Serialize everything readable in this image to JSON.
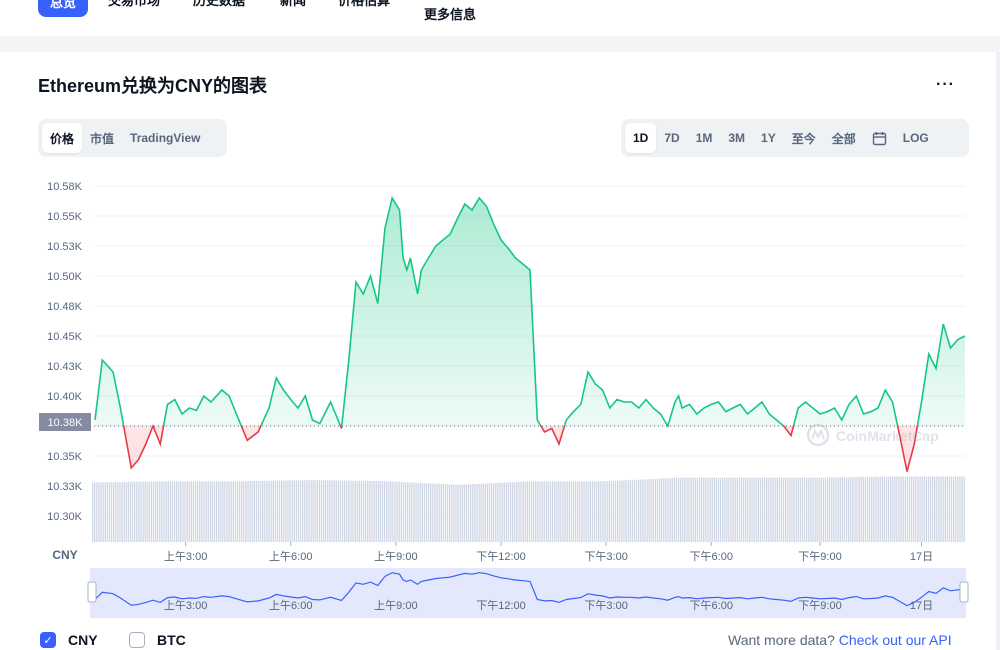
{
  "nav": {
    "tabs": [
      {
        "label": "总览",
        "active": true
      },
      {
        "label": "交易市场"
      },
      {
        "label": "历史数据"
      },
      {
        "label": "新闻"
      },
      {
        "label": "价格估算"
      },
      {
        "label": "更多信息"
      }
    ]
  },
  "chart_title": "Ethereum兑换为CNY的图表",
  "more_label": "···",
  "view_tabs": [
    {
      "label": "价格",
      "active": true
    },
    {
      "label": "市值"
    },
    {
      "label": "TradingView"
    }
  ],
  "range_tabs": [
    {
      "label": "1D",
      "active": true
    },
    {
      "label": "7D"
    },
    {
      "label": "1M"
    },
    {
      "label": "3M"
    },
    {
      "label": "1Y"
    },
    {
      "label": "至今"
    },
    {
      "label": "全部"
    },
    {
      "label": "",
      "icon": "calendar-icon"
    },
    {
      "label": "LOG"
    }
  ],
  "watermark": "CoinMarketCap",
  "legend": [
    {
      "label": "CNY",
      "checked": true
    },
    {
      "label": "BTC",
      "checked": false
    }
  ],
  "api_text": "Want more data?",
  "api_link": "Check out our API",
  "colors": {
    "up": "#16c784",
    "down": "#ea3943",
    "accent": "#3861fb"
  },
  "chart_data": {
    "type": "line",
    "y_unit_label": "CNY",
    "y_ticks": [
      "10.58K",
      "10.55K",
      "10.53K",
      "10.50K",
      "10.48K",
      "10.45K",
      "10.43K",
      "10.40K",
      "10.38K",
      "10.35K",
      "10.33K",
      "10.30K"
    ],
    "x_ticks": [
      "上午3:00",
      "上午6:00",
      "上午9:00",
      "下午12:00",
      "下午3:00",
      "下午6:00",
      "下午9:00",
      "17日"
    ],
    "ylim": [
      10300,
      10585
    ],
    "baseline": 10380,
    "baseline_label": "10.38K",
    "price_hours": [
      0.0,
      0.2,
      0.5,
      0.7,
      1.0,
      1.2,
      1.4,
      1.6,
      1.8,
      2.0,
      2.2,
      2.4,
      2.6,
      2.8,
      3.0,
      3.2,
      3.5,
      3.7,
      3.9,
      4.2,
      4.5,
      4.8,
      5.0,
      5.2,
      5.4,
      5.6,
      5.8,
      6.0,
      6.2,
      6.5,
      6.8,
      7.0,
      7.2,
      7.4,
      7.6,
      7.8,
      8.0,
      8.2,
      8.4,
      8.5,
      8.6,
      8.7,
      8.8,
      8.9,
      9.0,
      9.2,
      9.4,
      9.6,
      9.8,
      10.0,
      10.2,
      10.4,
      10.6,
      10.8,
      11.0,
      11.2,
      11.4,
      11.6,
      11.8,
      12.0,
      12.2,
      12.4,
      12.6,
      12.8,
      13.0,
      13.2,
      13.4,
      13.6,
      13.8,
      14.0,
      14.2,
      14.4,
      14.6,
      14.8,
      15.0,
      15.2,
      15.4,
      15.6,
      15.8,
      16.0,
      16.1,
      16.2,
      16.4,
      16.6,
      16.8,
      17.0,
      17.2,
      17.4,
      17.6,
      17.8,
      18.0,
      18.2,
      18.4,
      18.6,
      18.8,
      19.0,
      19.2,
      19.4,
      19.6,
      19.8,
      20.0,
      20.2,
      20.4,
      20.6,
      20.8,
      21.0,
      21.2,
      21.4,
      21.6,
      21.8,
      22.0,
      22.2,
      22.4,
      22.6,
      22.8,
      23.0,
      23.2,
      23.4,
      23.6,
      23.8,
      24.0
    ],
    "prices": [
      10385,
      10435,
      10425,
      10395,
      10345,
      10352,
      10365,
      10380,
      10365,
      10398,
      10402,
      10390,
      10395,
      10393,
      10405,
      10400,
      10410,
      10405,
      10390,
      10368,
      10375,
      10395,
      10420,
      10410,
      10402,
      10395,
      10405,
      10385,
      10382,
      10400,
      10378,
      10435,
      10500,
      10490,
      10505,
      10482,
      10545,
      10570,
      10560,
      10520,
      10510,
      10520,
      10505,
      10490,
      10510,
      10520,
      10530,
      10535,
      10540,
      10553,
      10565,
      10560,
      10570,
      10563,
      10548,
      10535,
      10528,
      10520,
      10515,
      10510,
      10385,
      10375,
      10378,
      10365,
      10385,
      10392,
      10398,
      10425,
      10415,
      10410,
      10395,
      10402,
      10400,
      10400,
      10395,
      10402,
      10395,
      10390,
      10380,
      10400,
      10405,
      10395,
      10398,
      10390,
      10395,
      10398,
      10400,
      10392,
      10395,
      10398,
      10390,
      10395,
      10400,
      10390,
      10385,
      10380,
      10372,
      10395,
      10400,
      10395,
      10390,
      10392,
      10395,
      10385,
      10398,
      10405,
      10390,
      10392,
      10395,
      10410,
      10400,
      10372,
      10342,
      10365,
      10400,
      10440,
      10428,
      10465,
      10445,
      10452,
      10455
    ],
    "volume_hours": [
      0,
      2,
      4,
      6,
      8,
      10,
      12,
      14,
      15.5,
      16,
      18,
      20,
      22,
      24
    ],
    "volume_values": [
      10.333,
      10.334,
      10.334,
      10.335,
      10.334,
      10.331,
      10.334,
      10.334,
      10.336,
      10.337,
      10.337,
      10.337,
      10.338,
      10.338
    ]
  }
}
